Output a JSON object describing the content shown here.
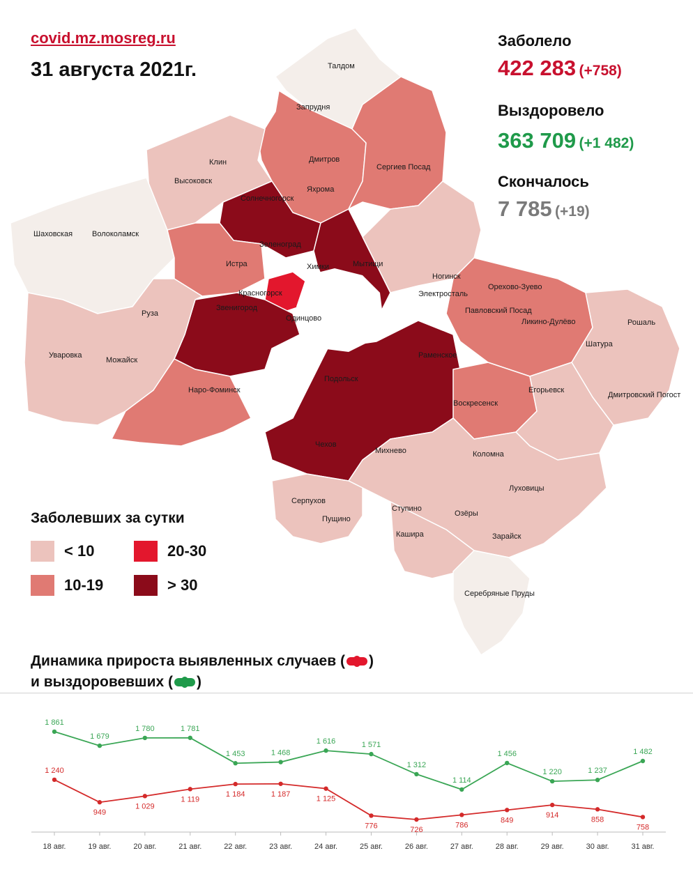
{
  "header": {
    "source": "covid.mz.mosreg.ru",
    "date": "31 августа 2021г."
  },
  "stats": {
    "infected": {
      "label": "Заболело",
      "value": "422 283",
      "delta": "(+758)",
      "color": "#c8102e"
    },
    "recovered": {
      "label": "Выздоровело",
      "value": "363 709",
      "delta": "(+1 482)",
      "color": "#1f9a4a"
    },
    "deaths": {
      "label": "Скончалось",
      "value": "7 785",
      "delta": "(+19)",
      "color": "#7a7a7a"
    }
  },
  "legend": {
    "title": "Заболевших за сутки",
    "items": [
      {
        "label": "< 10",
        "color": "#ecc3bd"
      },
      {
        "label": "10-19",
        "color": "#e07a73"
      },
      {
        "label": "20-30",
        "color": "#e3172d"
      },
      {
        "label": "> 30",
        "color": "#8b0b1a"
      }
    ]
  },
  "map": {
    "towns": [
      "Талдом",
      "Запрудня",
      "Дмитров",
      "Яхрома",
      "Сергиев Посад",
      "Клин",
      "Высоковск",
      "Солнечногорск",
      "Шаховская",
      "Волоколамск",
      "Зеленоград",
      "Истра",
      "Мытищи",
      "Химки",
      "Красногорск",
      "Звенигород",
      "Одинцово",
      "Руза",
      "Ногинск",
      "Электросталь",
      "Орехово-Зуево",
      "Павловский Посад",
      "Ликино-Дулёво",
      "Рошаль",
      "Шатура",
      "Уваровка",
      "Можайск",
      "Наро-Фоминск",
      "Раменское",
      "Подольск",
      "Егорьевск",
      "Воскресенск",
      "Дмитровский Погост",
      "Чехов",
      "Михнево",
      "Коломна",
      "Луховицы",
      "Серпухов",
      "Пущино",
      "Ступино",
      "Озёры",
      "Кашира",
      "Зарайск",
      "Серебряные Пруды"
    ]
  },
  "dynamics": {
    "line1": "Динамика прироста выявленных случаев (",
    "line1_end": ")",
    "line2": "и выздоровевших (",
    "line2_end": ")"
  },
  "chart_data": {
    "type": "line",
    "categories": [
      "18 авг.",
      "19 авг.",
      "20 авг.",
      "21 авг.",
      "22 авг.",
      "23 авг.",
      "24 авг.",
      "25 авг.",
      "26 авг.",
      "27 авг.",
      "28 авг.",
      "29 авг.",
      "30 авг.",
      "31 авг."
    ],
    "series": [
      {
        "color": "#3aa655",
        "values": [
          1861,
          1679,
          1780,
          1781,
          1453,
          1468,
          1616,
          1571,
          1312,
          1114,
          1456,
          1220,
          1237,
          1482
        ],
        "labels": [
          "1 861",
          "1 679",
          "1 780",
          "1 781",
          "1 453",
          "1 468",
          "1 616",
          "1 571",
          "1 312",
          "1 114",
          "1 456",
          "1 220",
          "1 237",
          "1 482"
        ]
      },
      {
        "color": "#d42a2a",
        "values": [
          1240,
          949,
          1029,
          1119,
          1184,
          1187,
          1125,
          776,
          726,
          786,
          849,
          914,
          858,
          758
        ],
        "labels": [
          "1 240",
          "949",
          "1 029",
          "1 119",
          "1 184",
          "1 187",
          "1 125",
          "776",
          "726",
          "786",
          "849",
          "914",
          "858",
          "758"
        ]
      }
    ],
    "ylim": [
      600,
      1950
    ]
  }
}
